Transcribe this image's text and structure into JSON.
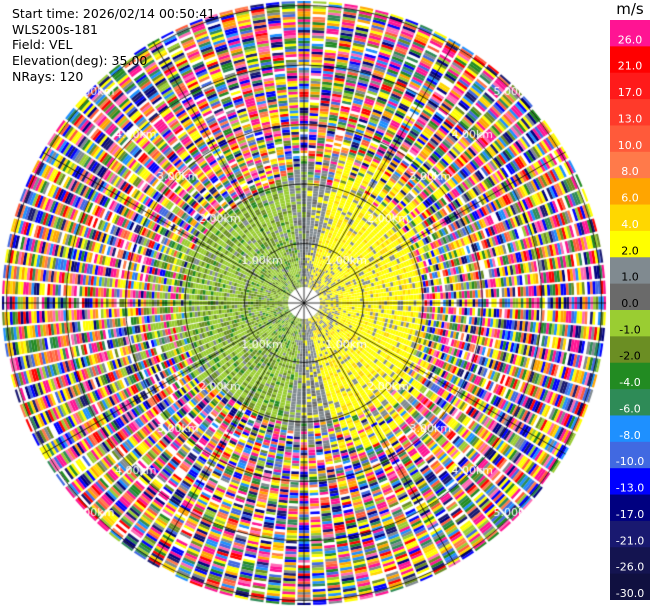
{
  "header": {
    "start_time": "Start time: 2026/02/14 00:50:41",
    "station": "WLS200s-181",
    "field": "Field: VEL",
    "elevation": "Elevation(deg): 35.00",
    "nrays": "NRays: 120"
  },
  "ring_labels": [
    "1.00km",
    "2.00km",
    "3.00km",
    "4.00km",
    "5.00km"
  ],
  "colorbar": {
    "unit": "m/s",
    "bins": [
      {
        "label": "26.0",
        "color": "#ff1493"
      },
      {
        "label": "21.0",
        "color": "#ff0000"
      },
      {
        "label": "17.0",
        "color": "#ff1a1a"
      },
      {
        "label": "13.0",
        "color": "#ff3a2a"
      },
      {
        "label": "10.0",
        "color": "#ff5a3a"
      },
      {
        "label": "8.0",
        "color": "#ff7a4a"
      },
      {
        "label": "6.0",
        "color": "#ffa500"
      },
      {
        "label": "4.0",
        "color": "#ffd700"
      },
      {
        "label": "2.0",
        "color": "#ffff00"
      },
      {
        "label": "1.0",
        "color": "#808a90"
      },
      {
        "label": "0.0",
        "color": "#6a6a6a"
      },
      {
        "label": "-1.0",
        "color": "#9acd32"
      },
      {
        "label": "-2.0",
        "color": "#6b8e23"
      },
      {
        "label": "-4.0",
        "color": "#228b22"
      },
      {
        "label": "-6.0",
        "color": "#2e8b57"
      },
      {
        "label": "-8.0",
        "color": "#1e90ff"
      },
      {
        "label": "-10.0",
        "color": "#4169e1"
      },
      {
        "label": "-13.0",
        "color": "#0000ff"
      },
      {
        "label": "-17.0",
        "color": "#000080"
      },
      {
        "label": "-21.0",
        "color": "#191970"
      },
      {
        "label": "-26.0",
        "color": "#141450"
      },
      {
        "label": "-30.0",
        "color": "#101040"
      }
    ]
  }
}
